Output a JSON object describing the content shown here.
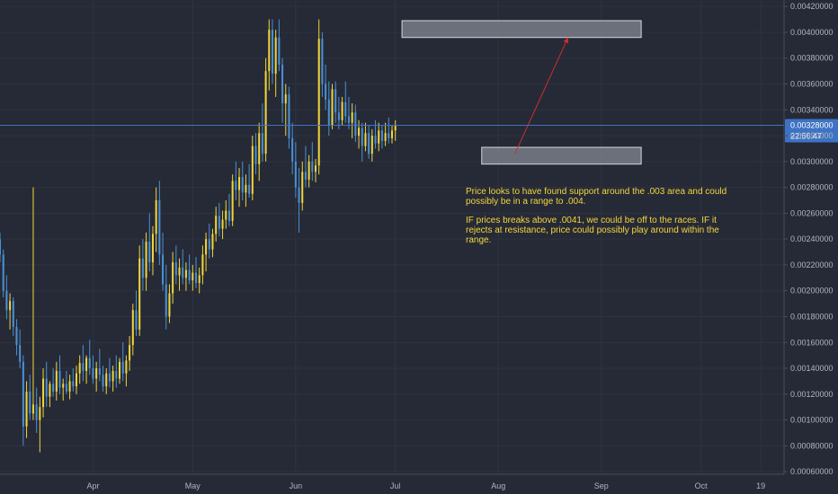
{
  "chart_data": {
    "type": "candlestick",
    "title": "",
    "ylim": [
      0.00058,
      0.00425
    ],
    "y_ticks": [
      "0.00420000",
      "0.00400000",
      "0.00380000",
      "0.00360000",
      "0.00340000",
      "0.00320000",
      "0.00300000",
      "0.00280000",
      "0.00260000",
      "0.00240000",
      "0.00220000",
      "0.00200000",
      "0.00180000",
      "0.00160000",
      "0.00140000",
      "0.00120000",
      "0.00100000",
      "0.00080000",
      "0.00060000"
    ],
    "x_ticks": [
      {
        "label": "Apr",
        "day": 28
      },
      {
        "label": "May",
        "day": 58
      },
      {
        "label": "Jun",
        "day": 89
      },
      {
        "label": "Jul",
        "day": 119
      },
      {
        "label": "Aug",
        "day": 150
      },
      {
        "label": "Sep",
        "day": 181
      },
      {
        "label": "Oct",
        "day": 211
      },
      {
        "label": "19",
        "day": 229
      }
    ],
    "x_range_days": [
      0,
      236
    ],
    "current_price": 0.00328,
    "current_price_label": "0.00328000",
    "countdown_label": "22:56:47",
    "resistance_zone": {
      "x_days": [
        121,
        193
      ],
      "y": [
        0.00396,
        0.00409
      ]
    },
    "support_zone": {
      "x_days": [
        145,
        193
      ],
      "y": [
        0.00298,
        0.00311
      ]
    },
    "projection_path": [
      {
        "day": 155,
        "price": 0.00306
      },
      {
        "day": 171,
        "price": 0.00396
      }
    ],
    "candles": [
      [
        0.0024,
        0.00245,
        0.00222,
        0.00228
      ],
      [
        0.00228,
        0.00232,
        0.00195,
        0.002
      ],
      [
        0.002,
        0.00212,
        0.00178,
        0.00185
      ],
      [
        0.00185,
        0.00198,
        0.0017,
        0.00192
      ],
      [
        0.00192,
        0.00195,
        0.00165,
        0.00172
      ],
      [
        0.00172,
        0.00178,
        0.0015,
        0.00158
      ],
      [
        0.00158,
        0.0017,
        0.0014,
        0.00145
      ],
      [
        0.00145,
        0.0015,
        0.0008,
        0.00095
      ],
      [
        0.00095,
        0.0013,
        0.00086,
        0.00122
      ],
      [
        0.00122,
        0.00135,
        0.001,
        0.00105
      ],
      [
        0.00105,
        0.0028,
        0.001,
        0.00112
      ],
      [
        0.00112,
        0.00125,
        0.0009,
        0.001
      ],
      [
        0.001,
        0.00118,
        0.00075,
        0.0011
      ],
      [
        0.0011,
        0.0014,
        0.00102,
        0.00132
      ],
      [
        0.00132,
        0.00145,
        0.0011,
        0.00118
      ],
      [
        0.00118,
        0.0013,
        0.0011,
        0.00128
      ],
      [
        0.00128,
        0.0014,
        0.00118,
        0.00122
      ],
      [
        0.00122,
        0.00145,
        0.00115,
        0.00138
      ],
      [
        0.00138,
        0.0015,
        0.0012,
        0.00125
      ],
      [
        0.00125,
        0.00132,
        0.00115,
        0.00128
      ],
      [
        0.00128,
        0.00138,
        0.0012,
        0.00122
      ],
      [
        0.00122,
        0.00135,
        0.00116,
        0.0013
      ],
      [
        0.0013,
        0.0014,
        0.00122,
        0.00126
      ],
      [
        0.00126,
        0.00142,
        0.0012,
        0.00136
      ],
      [
        0.00136,
        0.0015,
        0.00128,
        0.00144
      ],
      [
        0.00144,
        0.00158,
        0.0013,
        0.00138
      ],
      [
        0.00138,
        0.0015,
        0.00128,
        0.00148
      ],
      [
        0.00148,
        0.00162,
        0.00135,
        0.0014
      ],
      [
        0.0014,
        0.0015,
        0.00128,
        0.00132
      ],
      [
        0.00132,
        0.00145,
        0.00122,
        0.0014
      ],
      [
        0.0014,
        0.00155,
        0.0013,
        0.00135
      ],
      [
        0.00135,
        0.00142,
        0.00122,
        0.00126
      ],
      [
        0.00126,
        0.0014,
        0.0012,
        0.00136
      ],
      [
        0.00136,
        0.00148,
        0.00125,
        0.0013
      ],
      [
        0.0013,
        0.00142,
        0.00122,
        0.00138
      ],
      [
        0.00138,
        0.0015,
        0.00125,
        0.00132
      ],
      [
        0.00132,
        0.00148,
        0.00128,
        0.00145
      ],
      [
        0.00145,
        0.0016,
        0.0013,
        0.00136
      ],
      [
        0.00136,
        0.0015,
        0.00126,
        0.00146
      ],
      [
        0.00146,
        0.00165,
        0.00138,
        0.00158
      ],
      [
        0.00158,
        0.0019,
        0.0015,
        0.00185
      ],
      [
        0.00185,
        0.002,
        0.00165,
        0.0017
      ],
      [
        0.0017,
        0.00235,
        0.00165,
        0.00225
      ],
      [
        0.00225,
        0.0024,
        0.002,
        0.0021
      ],
      [
        0.0021,
        0.00245,
        0.002,
        0.00238
      ],
      [
        0.00238,
        0.0026,
        0.00215,
        0.00222
      ],
      [
        0.00222,
        0.0025,
        0.00212,
        0.00244
      ],
      [
        0.00244,
        0.0028,
        0.0023,
        0.0027
      ],
      [
        0.0027,
        0.00285,
        0.0022,
        0.00228
      ],
      [
        0.00228,
        0.00245,
        0.002,
        0.00205
      ],
      [
        0.00205,
        0.0022,
        0.0017,
        0.0018
      ],
      [
        0.0018,
        0.00205,
        0.00175,
        0.00198
      ],
      [
        0.00198,
        0.0023,
        0.0019,
        0.00222
      ],
      [
        0.00222,
        0.00235,
        0.00205,
        0.00212
      ],
      [
        0.00212,
        0.00225,
        0.002,
        0.00218
      ],
      [
        0.00218,
        0.00232,
        0.00205,
        0.0021
      ],
      [
        0.0021,
        0.00222,
        0.002,
        0.00216
      ],
      [
        0.00216,
        0.00228,
        0.00205,
        0.00208
      ],
      [
        0.00208,
        0.0022,
        0.002,
        0.00214
      ],
      [
        0.00214,
        0.00226,
        0.00202,
        0.00206
      ],
      [
        0.00206,
        0.00218,
        0.00198,
        0.00212
      ],
      [
        0.00212,
        0.00235,
        0.00205,
        0.00228
      ],
      [
        0.00228,
        0.00245,
        0.00215,
        0.0024
      ],
      [
        0.0024,
        0.00252,
        0.00225,
        0.00232
      ],
      [
        0.00232,
        0.00248,
        0.00226,
        0.00244
      ],
      [
        0.00244,
        0.00265,
        0.00238,
        0.00258
      ],
      [
        0.00258,
        0.00268,
        0.00242,
        0.00248
      ],
      [
        0.00248,
        0.00262,
        0.0024,
        0.00255
      ],
      [
        0.00255,
        0.0027,
        0.00248,
        0.00262
      ],
      [
        0.00262,
        0.00275,
        0.0025,
        0.00254
      ],
      [
        0.00254,
        0.0029,
        0.0025,
        0.00285
      ],
      [
        0.00285,
        0.003,
        0.0027,
        0.00278
      ],
      [
        0.00278,
        0.00295,
        0.00265,
        0.00288
      ],
      [
        0.00288,
        0.003,
        0.0027,
        0.00276
      ],
      [
        0.00276,
        0.0029,
        0.00265,
        0.00282
      ],
      [
        0.00282,
        0.00298,
        0.00272,
        0.00275
      ],
      [
        0.00275,
        0.0032,
        0.0027,
        0.00312
      ],
      [
        0.00312,
        0.00322,
        0.0029,
        0.00298
      ],
      [
        0.00298,
        0.0033,
        0.00285,
        0.00322
      ],
      [
        0.00322,
        0.00345,
        0.003,
        0.00306
      ],
      [
        0.00306,
        0.0038,
        0.003,
        0.0037
      ],
      [
        0.0037,
        0.0041,
        0.00355,
        0.00402
      ],
      [
        0.00402,
        0.0041,
        0.0036,
        0.00368
      ],
      [
        0.00368,
        0.00402,
        0.0035,
        0.00396
      ],
      [
        0.00396,
        0.0041,
        0.0037,
        0.00375
      ],
      [
        0.00375,
        0.0038,
        0.0033,
        0.00345
      ],
      [
        0.00345,
        0.0036,
        0.0032,
        0.00352
      ],
      [
        0.00352,
        0.00358,
        0.0031,
        0.00318
      ],
      [
        0.00318,
        0.0033,
        0.0029,
        0.003
      ],
      [
        0.003,
        0.00315,
        0.00272,
        0.0028
      ],
      [
        0.0028,
        0.00295,
        0.00245,
        0.00268
      ],
      [
        0.00268,
        0.003,
        0.00262,
        0.00292
      ],
      [
        0.00292,
        0.00312,
        0.0028,
        0.00286
      ],
      [
        0.00286,
        0.00305,
        0.0028,
        0.003
      ],
      [
        0.003,
        0.00315,
        0.00285,
        0.00292
      ],
      [
        0.00292,
        0.00302,
        0.00284,
        0.00297
      ],
      [
        0.00297,
        0.0041,
        0.0029,
        0.00395
      ],
      [
        0.00395,
        0.004,
        0.0035,
        0.0036
      ],
      [
        0.0036,
        0.00375,
        0.0034,
        0.00348
      ],
      [
        0.00348,
        0.00362,
        0.0032,
        0.00328
      ],
      [
        0.00328,
        0.0036,
        0.00325,
        0.00356
      ],
      [
        0.00356,
        0.00362,
        0.0033,
        0.00338
      ],
      [
        0.00338,
        0.0035,
        0.00325,
        0.00332
      ],
      [
        0.00332,
        0.0035,
        0.00328,
        0.00346
      ],
      [
        0.00346,
        0.00362,
        0.0033,
        0.00335
      ],
      [
        0.00335,
        0.0035,
        0.00325,
        0.0033
      ],
      [
        0.0033,
        0.00345,
        0.00318,
        0.00338
      ],
      [
        0.00338,
        0.00344,
        0.00315,
        0.0032
      ],
      [
        0.0032,
        0.00332,
        0.0031,
        0.00326
      ],
      [
        0.00326,
        0.0033,
        0.003,
        0.00312
      ],
      [
        0.00312,
        0.0033,
        0.00308,
        0.00322
      ],
      [
        0.00322,
        0.00328,
        0.00302,
        0.00306
      ],
      [
        0.00306,
        0.00325,
        0.003,
        0.0032
      ],
      [
        0.0032,
        0.00332,
        0.0031,
        0.00314
      ],
      [
        0.00314,
        0.0033,
        0.00308,
        0.00324
      ],
      [
        0.00324,
        0.00328,
        0.0031,
        0.00316
      ],
      [
        0.00316,
        0.0033,
        0.00312,
        0.00322
      ],
      [
        0.00322,
        0.00334,
        0.00314,
        0.00318
      ],
      [
        0.00318,
        0.00328,
        0.00314,
        0.00324
      ],
      [
        0.00324,
        0.00332,
        0.00316,
        0.00328
      ]
    ]
  },
  "annotation": {
    "line1": "Price looks to have found support around the .003 area and could possibly be in a range to .004.",
    "line2": "IF prices breaks above .0041, we could be off to the races. IF it rejects at resistance, price could possibly play around within the range."
  },
  "colors": {
    "background": "#262a36",
    "grid": "#2f3340",
    "bull": "#f0d43a",
    "bear": "#4a90d4",
    "price_line": "#3d73c4",
    "price_tag": "#3d73c4",
    "zone_fill": "#8a8e99",
    "projection": "#cc2e2e",
    "axis_text": "#b2b5be",
    "annotation_text": "#f5d63d"
  }
}
